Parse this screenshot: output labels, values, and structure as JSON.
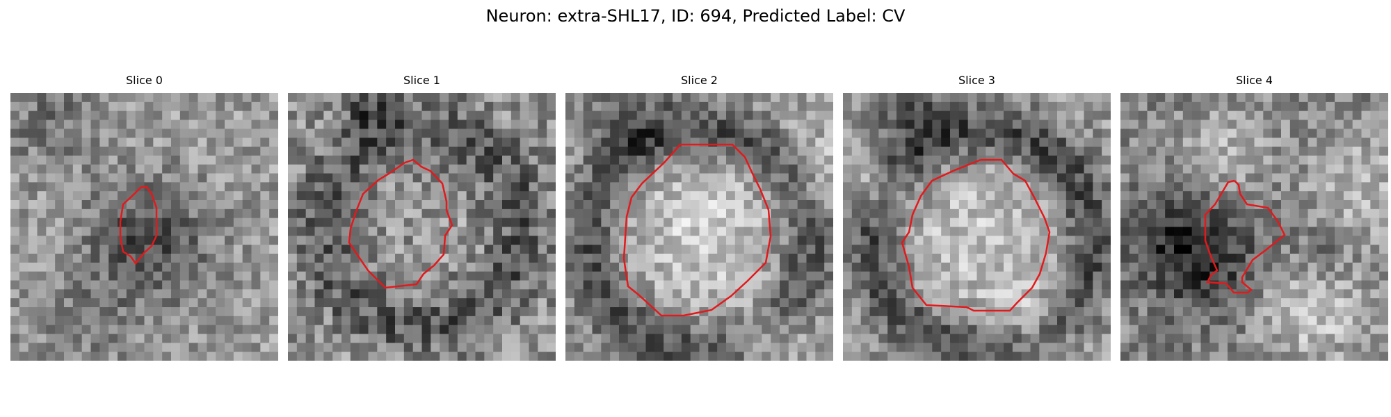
{
  "figure": {
    "title": "Neuron: extra-SHL17, ID: 694, Predicted Label: CV"
  },
  "slices": [
    {
      "title": "Slice 0"
    },
    {
      "title": "Slice 1"
    },
    {
      "title": "Slice 2"
    },
    {
      "title": "Slice 3"
    },
    {
      "title": "Slice 4"
    }
  ],
  "colors": {
    "contour": "#e3191c",
    "background": "#ffffff"
  }
}
